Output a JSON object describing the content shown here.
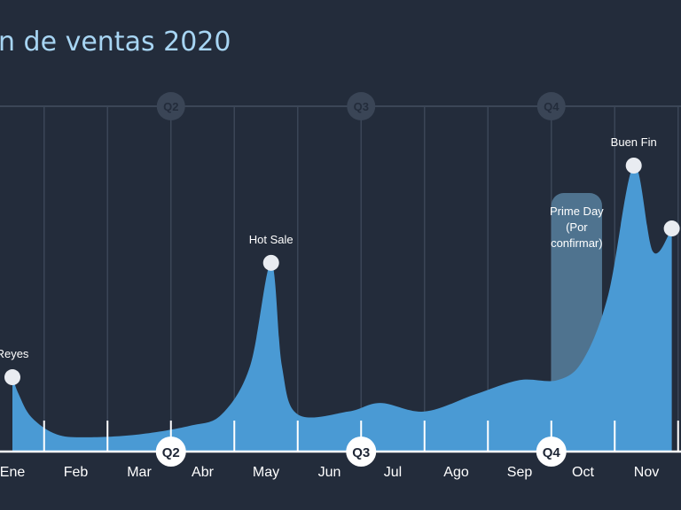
{
  "title": "n de ventas 2020",
  "colors": {
    "background": "#232c3b",
    "area": "#4a9ad4",
    "grid": "#3b4657",
    "quarter_badge_bg": "#3a4556",
    "quarter_badge_text": "#232c3b",
    "axis": "#ffffff",
    "title": "#a7d5f3",
    "highlight": "#57809f"
  },
  "chart_data": {
    "type": "area",
    "title": "n de ventas 2020",
    "xlabel": "",
    "ylabel": "",
    "months": [
      "Ene",
      "Feb",
      "Mar",
      "Abr",
      "May",
      "Jun",
      "Jul",
      "Ago",
      "Sep",
      "Oct",
      "Nov"
    ],
    "quarters": [
      "Q2",
      "Q3",
      "Q4"
    ],
    "quarter_starts": [
      2.5,
      5.5,
      8.5
    ],
    "curve": [
      {
        "x": 0.0,
        "y": 0.26
      },
      {
        "x": 0.1,
        "y": 0.2
      },
      {
        "x": 0.3,
        "y": 0.12
      },
      {
        "x": 0.7,
        "y": 0.06
      },
      {
        "x": 1.2,
        "y": 0.05
      },
      {
        "x": 2.0,
        "y": 0.06
      },
      {
        "x": 2.8,
        "y": 0.09
      },
      {
        "x": 3.3,
        "y": 0.13
      },
      {
        "x": 3.75,
        "y": 0.3
      },
      {
        "x": 4.08,
        "y": 0.66
      },
      {
        "x": 4.25,
        "y": 0.3
      },
      {
        "x": 4.5,
        "y": 0.13
      },
      {
        "x": 5.3,
        "y": 0.14
      },
      {
        "x": 5.8,
        "y": 0.17
      },
      {
        "x": 6.5,
        "y": 0.14
      },
      {
        "x": 7.3,
        "y": 0.2
      },
      {
        "x": 8.0,
        "y": 0.25
      },
      {
        "x": 8.6,
        "y": 0.25
      },
      {
        "x": 9.0,
        "y": 0.32
      },
      {
        "x": 9.4,
        "y": 0.55
      },
      {
        "x": 9.8,
        "y": 1.0
      },
      {
        "x": 10.1,
        "y": 0.7
      },
      {
        "x": 10.4,
        "y": 0.78
      }
    ],
    "events": [
      {
        "label": "Reyes",
        "x": 0.0,
        "y": 0.26
      },
      {
        "label": "Hot Sale",
        "x": 4.08,
        "y": 0.66
      },
      {
        "label": "Buen Fin",
        "x": 9.8,
        "y": 1.0
      },
      {
        "label": "",
        "x": 10.4,
        "y": 0.78
      }
    ],
    "highlight": {
      "label_lines": [
        "Prime Day",
        "(Por",
        "confirmar)"
      ],
      "x_start": 8.5,
      "x_end": 9.3
    }
  }
}
